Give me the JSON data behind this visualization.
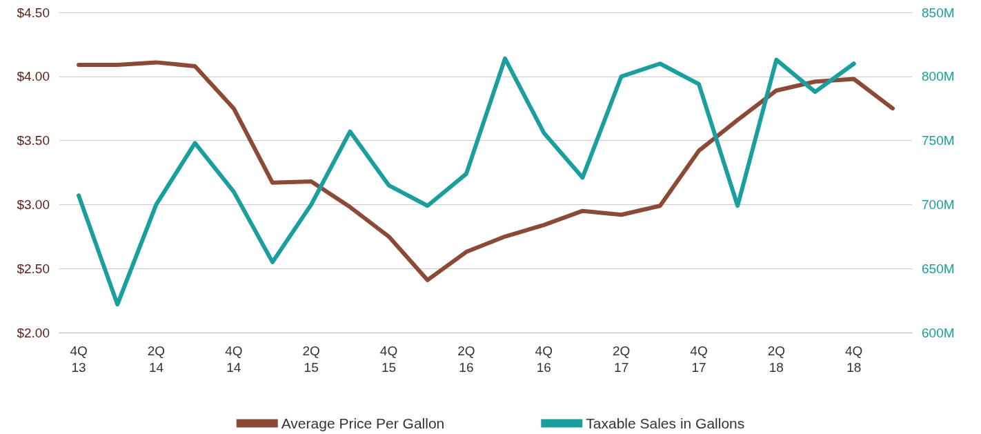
{
  "chart_data": {
    "type": "line",
    "categories": [
      "4Q\n13",
      null,
      "2Q\n14",
      null,
      "4Q\n14",
      null,
      "2Q\n15",
      null,
      "4Q\n15",
      null,
      "2Q\n16",
      null,
      "4Q\n16",
      null,
      "2Q\n17",
      null,
      "4Q\n17",
      null,
      "2Q\n18",
      null,
      "4Q\n18",
      null
    ],
    "series": [
      {
        "name": "Average Price Per Gallon",
        "color": "#8b4a36",
        "values": [
          4.09,
          4.09,
          4.11,
          4.08,
          3.75,
          3.17,
          3.18,
          2.98,
          2.75,
          2.41,
          2.63,
          2.75,
          2.84,
          2.95,
          2.92,
          2.99,
          3.42,
          3.66,
          3.89,
          3.96,
          3.98,
          3.75
        ]
      },
      {
        "name": "Taxable Sales in Gallons",
        "color": "#1a9e9e",
        "axis": "y2",
        "values": [
          707,
          622,
          700,
          748,
          710,
          655,
          700,
          757,
          715,
          699,
          724,
          814,
          756,
          721,
          800,
          810,
          794,
          699,
          813,
          788,
          810,
          null
        ]
      }
    ],
    "ylim": [
      2,
      4.5
    ],
    "yticks": [
      {
        "value": 2,
        "label": "$2.00"
      },
      {
        "value": 2.5,
        "label": "$2.50"
      },
      {
        "value": 3,
        "label": "$3.00"
      },
      {
        "value": 3.5,
        "label": "$3.50"
      },
      {
        "value": 4,
        "label": "$4.00"
      },
      {
        "value": 4.5,
        "label": "$4.50"
      }
    ],
    "y2lim": [
      600,
      850
    ],
    "y2ticks": [
      {
        "value": 600,
        "label": "600M"
      },
      {
        "value": 650,
        "label": "650M"
      },
      {
        "value": 700,
        "label": "700M"
      },
      {
        "value": 750,
        "label": "750M"
      },
      {
        "value": 800,
        "label": "800M"
      },
      {
        "value": 850,
        "label": "850M"
      }
    ],
    "grid": "y",
    "legend": "bottom",
    "marker": "none",
    "line_style": "solid"
  }
}
